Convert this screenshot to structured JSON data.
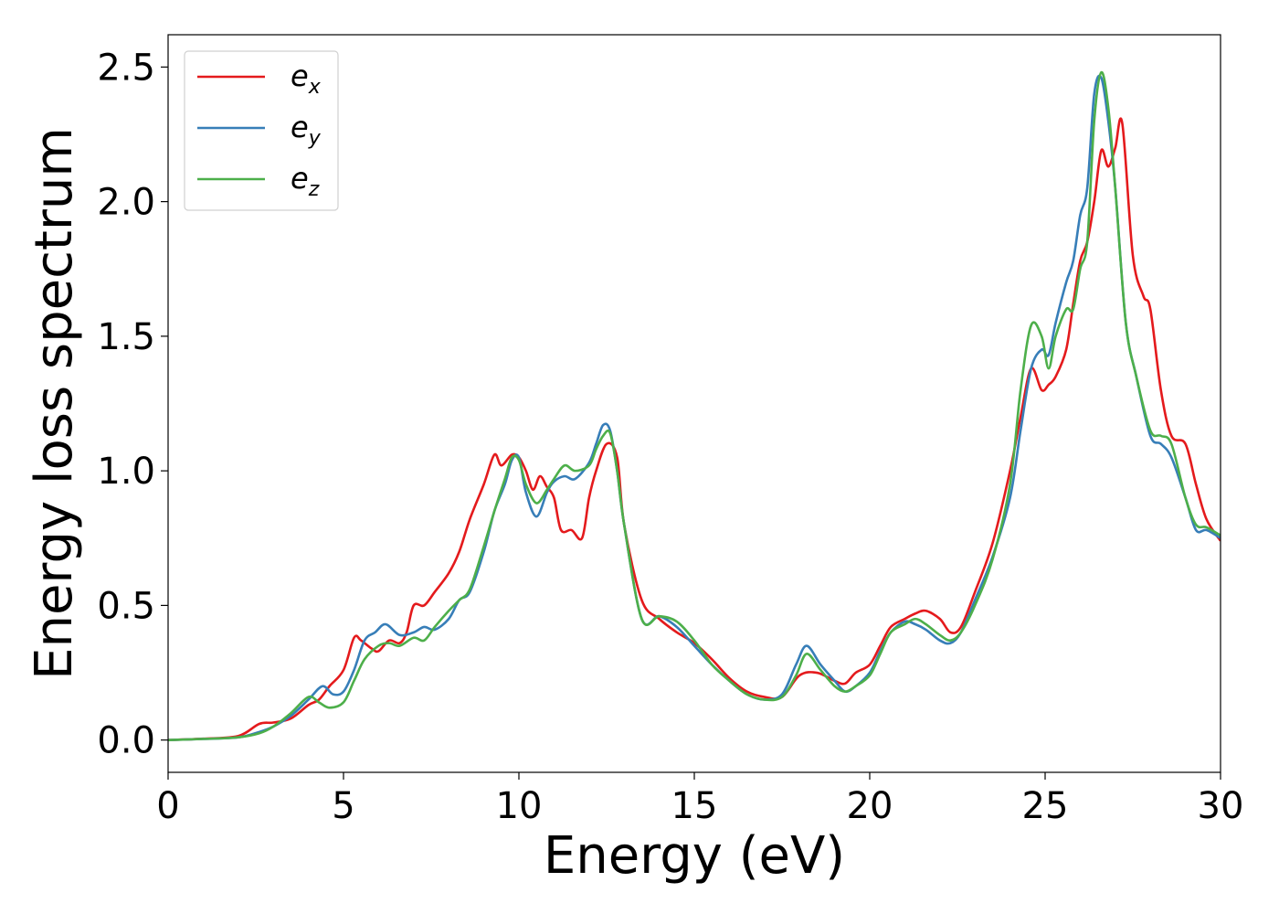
{
  "chart_data": {
    "type": "line",
    "title": "",
    "xlabel": "Energy (eV)",
    "ylabel": "Energy loss spectrum",
    "xlim": [
      0,
      30
    ],
    "ylim": [
      -0.12,
      2.62
    ],
    "xticks": [
      0,
      5,
      10,
      15,
      20,
      25,
      30
    ],
    "xtick_labels": [
      "0",
      "5",
      "10",
      "15",
      "20",
      "25",
      "30"
    ],
    "yticks": [
      0.0,
      0.5,
      1.0,
      1.5,
      2.0,
      2.5
    ],
    "ytick_labels": [
      "0.0",
      "0.5",
      "1.0",
      "1.5",
      "2.0",
      "2.5"
    ],
    "grid": false,
    "legend_position": "top-left",
    "series": [
      {
        "name": "e_x",
        "legend_base": "e",
        "legend_sub": "x",
        "color": "#e41a1c",
        "x": [
          0,
          1,
          2,
          2.6,
          3,
          3.5,
          4,
          4.3,
          4.6,
          5,
          5.3,
          5.5,
          5.8,
          6,
          6.3,
          6.6,
          6.8,
          7,
          7.3,
          7.6,
          8,
          8.3,
          8.6,
          9,
          9.3,
          9.5,
          9.8,
          10,
          10.2,
          10.4,
          10.6,
          10.8,
          11,
          11.2,
          11.5,
          11.8,
          12,
          12.2,
          12.5,
          12.8,
          13,
          13.5,
          14,
          14.5,
          15,
          15.5,
          16,
          16.5,
          17,
          17.5,
          18,
          18.5,
          19,
          19.3,
          19.6,
          20,
          20.3,
          20.6,
          21,
          21.3,
          21.6,
          22,
          22.3,
          22.6,
          23,
          23.5,
          24,
          24.3,
          24.6,
          24.9,
          25.1,
          25.3,
          25.6,
          25.8,
          26,
          26.2,
          26.4,
          26.6,
          26.8,
          27,
          27.2,
          27.5,
          27.8,
          28,
          28.3,
          28.6,
          29,
          29.3,
          29.6,
          30
        ],
        "y": [
          0,
          0.005,
          0.015,
          0.06,
          0.065,
          0.08,
          0.13,
          0.15,
          0.2,
          0.26,
          0.38,
          0.37,
          0.34,
          0.33,
          0.37,
          0.36,
          0.4,
          0.5,
          0.5,
          0.55,
          0.62,
          0.7,
          0.82,
          0.95,
          1.06,
          1.02,
          1.06,
          1.05,
          1.0,
          0.93,
          0.98,
          0.94,
          0.9,
          0.78,
          0.78,
          0.75,
          0.9,
          1.0,
          1.1,
          1.05,
          0.8,
          0.52,
          0.45,
          0.4,
          0.36,
          0.3,
          0.23,
          0.18,
          0.16,
          0.16,
          0.24,
          0.25,
          0.22,
          0.21,
          0.25,
          0.28,
          0.35,
          0.42,
          0.45,
          0.47,
          0.48,
          0.45,
          0.4,
          0.42,
          0.55,
          0.73,
          1.0,
          1.2,
          1.38,
          1.3,
          1.32,
          1.35,
          1.45,
          1.62,
          1.78,
          1.85,
          2.0,
          2.19,
          2.13,
          2.2,
          2.29,
          1.8,
          1.65,
          1.6,
          1.3,
          1.13,
          1.1,
          0.95,
          0.82,
          0.74
        ]
      },
      {
        "name": "e_y",
        "legend_base": "e",
        "legend_sub": "y",
        "color": "#377eb8",
        "x": [
          0,
          1,
          2,
          2.6,
          3,
          3.5,
          4,
          4.4,
          4.7,
          5,
          5.3,
          5.6,
          5.9,
          6.2,
          6.6,
          7,
          7.3,
          7.6,
          8,
          8.3,
          8.6,
          9,
          9.3,
          9.6,
          9.8,
          10,
          10.2,
          10.5,
          10.8,
          11,
          11.3,
          11.6,
          12,
          12.2,
          12.4,
          12.6,
          12.8,
          13,
          13.5,
          14,
          14.5,
          15,
          15.5,
          16,
          16.5,
          17,
          17.5,
          17.9,
          18.2,
          18.6,
          19,
          19.3,
          19.6,
          20,
          20.3,
          20.6,
          21,
          21.3,
          21.6,
          22,
          22.3,
          22.6,
          23,
          23.5,
          24,
          24.3,
          24.6,
          24.9,
          25.1,
          25.3,
          25.6,
          25.8,
          26,
          26.2,
          26.4,
          26.6,
          26.8,
          27,
          27.3,
          27.6,
          28,
          28.3,
          28.6,
          29,
          29.3,
          29.6,
          30
        ],
        "y": [
          0,
          0.004,
          0.01,
          0.03,
          0.05,
          0.09,
          0.15,
          0.2,
          0.17,
          0.18,
          0.26,
          0.37,
          0.4,
          0.43,
          0.39,
          0.4,
          0.42,
          0.41,
          0.45,
          0.52,
          0.55,
          0.7,
          0.85,
          0.95,
          1.04,
          1.05,
          0.92,
          0.83,
          0.92,
          0.96,
          0.98,
          0.97,
          1.03,
          1.1,
          1.17,
          1.15,
          1.0,
          0.8,
          0.45,
          0.46,
          0.42,
          0.35,
          0.28,
          0.22,
          0.17,
          0.15,
          0.17,
          0.28,
          0.35,
          0.28,
          0.22,
          0.18,
          0.2,
          0.25,
          0.33,
          0.4,
          0.44,
          0.43,
          0.41,
          0.37,
          0.36,
          0.4,
          0.52,
          0.68,
          0.9,
          1.15,
          1.38,
          1.45,
          1.43,
          1.55,
          1.7,
          1.78,
          1.95,
          2.05,
          2.4,
          2.46,
          2.3,
          2.05,
          1.55,
          1.35,
          1.13,
          1.1,
          1.05,
          0.9,
          0.78,
          0.78,
          0.75
        ]
      },
      {
        "name": "e_z",
        "legend_base": "e",
        "legend_sub": "z",
        "color": "#4daf4a",
        "x": [
          0,
          1,
          2,
          2.6,
          3,
          3.5,
          4,
          4.3,
          4.6,
          5,
          5.3,
          5.6,
          6,
          6.3,
          6.6,
          7,
          7.3,
          7.6,
          8,
          8.3,
          8.6,
          9,
          9.3,
          9.6,
          9.8,
          10,
          10.2,
          10.5,
          10.8,
          11,
          11.3,
          11.6,
          12,
          12.2,
          12.4,
          12.6,
          12.8,
          13,
          13.5,
          14,
          14.5,
          15,
          15.5,
          16,
          16.5,
          17,
          17.5,
          17.9,
          18.2,
          18.6,
          19,
          19.3,
          19.6,
          20,
          20.3,
          20.6,
          21,
          21.3,
          21.6,
          22,
          22.3,
          22.6,
          23,
          23.5,
          24,
          24.3,
          24.6,
          24.9,
          25.1,
          25.3,
          25.6,
          25.8,
          26,
          26.2,
          26.4,
          26.6,
          26.8,
          27,
          27.3,
          27.6,
          28,
          28.3,
          28.6,
          29,
          29.3,
          29.6,
          30
        ],
        "y": [
          0,
          0.004,
          0.01,
          0.025,
          0.05,
          0.1,
          0.16,
          0.14,
          0.12,
          0.14,
          0.22,
          0.3,
          0.35,
          0.36,
          0.35,
          0.38,
          0.37,
          0.42,
          0.48,
          0.52,
          0.56,
          0.72,
          0.85,
          0.97,
          1.05,
          1.04,
          0.95,
          0.88,
          0.93,
          0.97,
          1.02,
          1.0,
          1.02,
          1.08,
          1.13,
          1.14,
          1.0,
          0.8,
          0.45,
          0.46,
          0.44,
          0.37,
          0.28,
          0.22,
          0.17,
          0.15,
          0.16,
          0.24,
          0.32,
          0.26,
          0.2,
          0.18,
          0.2,
          0.24,
          0.32,
          0.4,
          0.43,
          0.45,
          0.43,
          0.39,
          0.37,
          0.4,
          0.5,
          0.67,
          0.95,
          1.3,
          1.54,
          1.5,
          1.38,
          1.5,
          1.6,
          1.6,
          1.75,
          1.85,
          2.3,
          2.48,
          2.35,
          2.05,
          1.55,
          1.35,
          1.15,
          1.13,
          1.1,
          0.9,
          0.8,
          0.79,
          0.76
        ]
      }
    ]
  }
}
